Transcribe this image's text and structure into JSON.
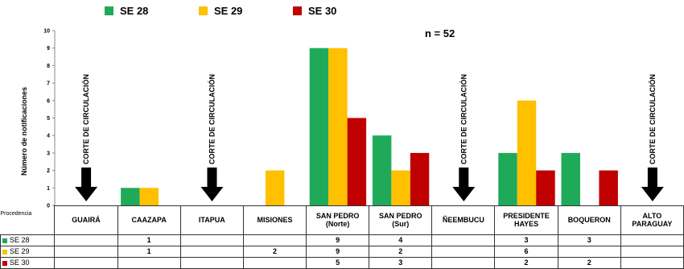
{
  "legend": [
    {
      "label": "SE 28",
      "color": "#1faa59"
    },
    {
      "label": "SE 29",
      "color": "#ffc000"
    },
    {
      "label": "SE 30",
      "color": "#c00000"
    }
  ],
  "n_label": "n = 52",
  "chart_data": {
    "type": "bar",
    "title": "",
    "ylabel": "Número de notificaciones",
    "xlabel": "Procedencia",
    "ylim": [
      0,
      10
    ],
    "yticks": [
      0,
      1,
      2,
      3,
      4,
      5,
      6,
      7,
      8,
      9,
      10
    ],
    "categories": [
      "GUAIRÁ",
      "CAAZAPA",
      "ITAPUA",
      "MISIONES",
      "SAN PEDRO (Norte)",
      "SAN PEDRO (Sur)",
      "ÑEEMBUCU",
      "PRESIDENTE HAYES",
      "BOQUERON",
      "ALTO PARAGUAY"
    ],
    "series": [
      {
        "name": "SE 28",
        "color": "#1faa59",
        "values": [
          null,
          1,
          null,
          null,
          9,
          4,
          null,
          3,
          3,
          null
        ]
      },
      {
        "name": "SE 29",
        "color": "#ffc000",
        "values": [
          null,
          1,
          null,
          2,
          9,
          2,
          null,
          6,
          null,
          null
        ]
      },
      {
        "name": "SE 30",
        "color": "#c00000",
        "values": [
          null,
          null,
          null,
          null,
          5,
          3,
          null,
          2,
          2,
          null
        ]
      }
    ],
    "annotations": [
      {
        "category": "GUAIRÁ",
        "text": "CORTE DE CIRCULACIÓN"
      },
      {
        "category": "ITAPUA",
        "text": "CORTE DE CIRCULACIÓN"
      },
      {
        "category": "ÑEEMBUCU",
        "text": "CORTE DE CIRCULACIÓN"
      },
      {
        "category": "ALTO PARAGUAY",
        "text": "CORTE DE CIRCULACIÓN"
      }
    ],
    "table_labels": [
      "GUAIRÁ",
      "CAAZAPA",
      "ITAPUA",
      "MISIONES",
      "SAN PEDRO\n(Norte)",
      "SAN PEDRO\n(Sur)",
      "ÑEEMBUCU",
      "PRESIDENTE\nHAYES",
      "BOQUERON",
      "ALTO\nPARAGUAY"
    ],
    "table_row_header": "Procedencia"
  }
}
